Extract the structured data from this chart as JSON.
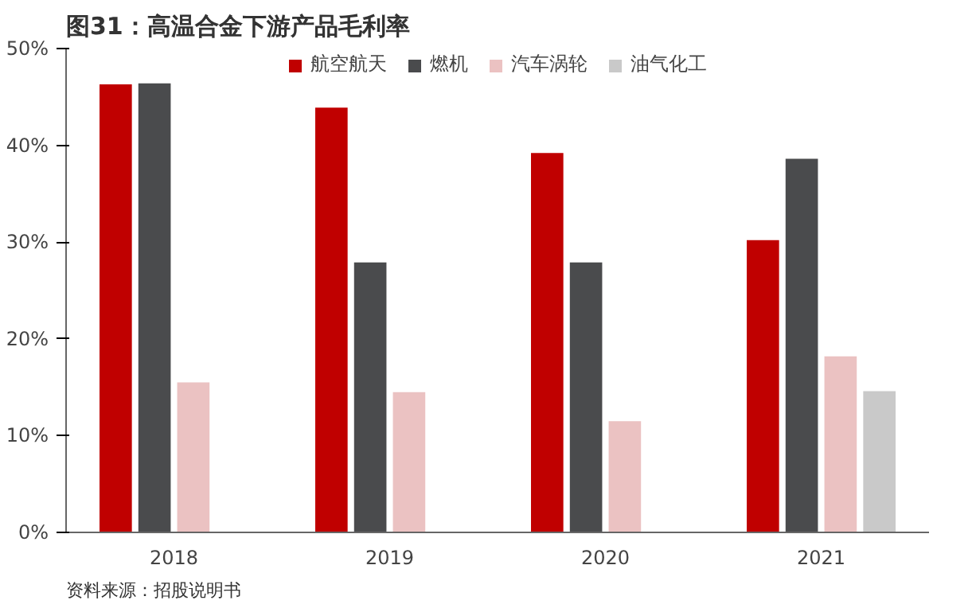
{
  "chart_data": {
    "type": "bar",
    "title": "图31：高温合金下游产品毛利率",
    "categories": [
      "2018",
      "2019",
      "2020",
      "2021"
    ],
    "series": [
      {
        "name": "航空航天",
        "color": "#c00000",
        "values": [
          46.3,
          43.9,
          39.2,
          30.2
        ]
      },
      {
        "name": "燃机",
        "color": "#4a4b4d",
        "values": [
          46.4,
          27.9,
          27.9,
          38.6
        ]
      },
      {
        "name": "汽车涡轮",
        "color": "#ebc2c2",
        "values": [
          15.5,
          14.5,
          11.5,
          18.2
        ]
      },
      {
        "name": "油气化工",
        "color": "#c9c9c9",
        "values": [
          null,
          null,
          null,
          14.6
        ]
      }
    ],
    "ylim": [
      0,
      50
    ],
    "yticks": [
      {
        "value": 0,
        "label": "0%"
      },
      {
        "value": 10,
        "label": "10%"
      },
      {
        "value": 20,
        "label": "20%"
      },
      {
        "value": 30,
        "label": "30%"
      },
      {
        "value": 40,
        "label": "40%"
      },
      {
        "value": 50,
        "label": "50%"
      }
    ],
    "grid": false,
    "legend": "top",
    "annotations": [
      "资料来源：招股说明书"
    ]
  }
}
